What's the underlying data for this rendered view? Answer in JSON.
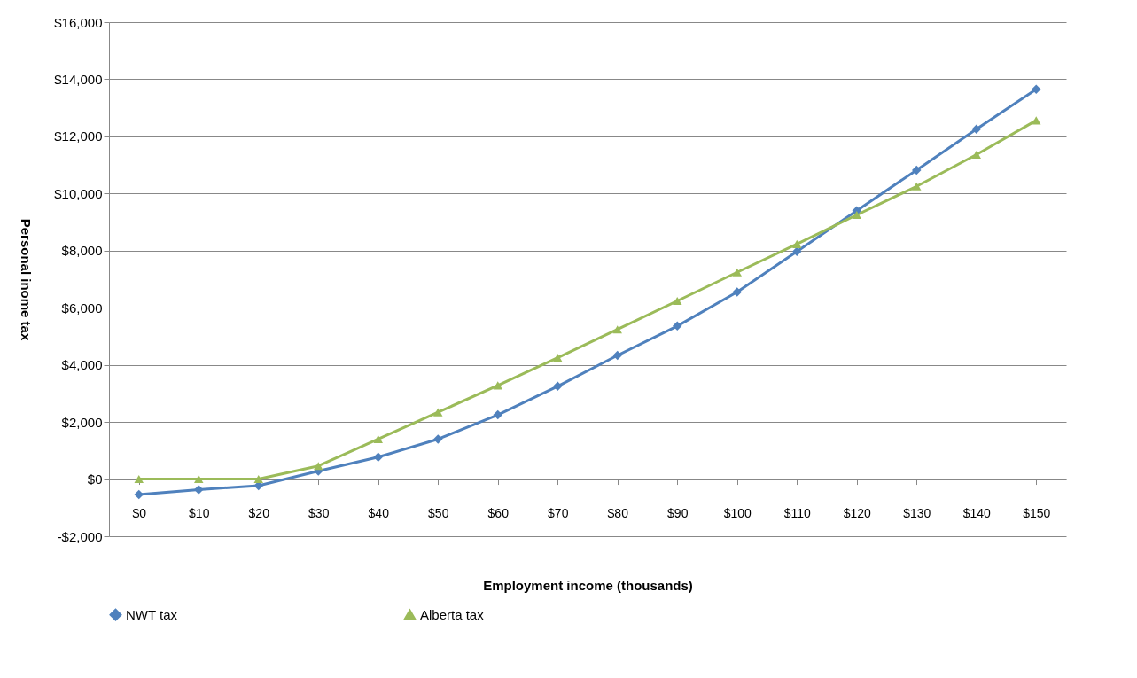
{
  "chart_data": {
    "type": "line",
    "xlabel": "Employment income (thousands)",
    "ylabel": "Personal inome tax",
    "categories": [
      "$0",
      "$10",
      "$20",
      "$30",
      "$40",
      "$50",
      "$60",
      "$70",
      "$80",
      "$90",
      "$100",
      "$110",
      "$120",
      "$130",
      "$140",
      "$150"
    ],
    "series": [
      {
        "name": "NWT tax",
        "color": "#4f81bd",
        "marker": "diamond",
        "values": [
          -540,
          -370,
          -230,
          280,
          770,
          1400,
          2250,
          3250,
          4330,
          5360,
          6550,
          7970,
          9400,
          10820,
          12250,
          13650
        ]
      },
      {
        "name": "Alberta tax",
        "color": "#9bbb59",
        "marker": "triangle",
        "values": [
          0,
          0,
          0,
          460,
          1400,
          2340,
          3280,
          4250,
          5240,
          6240,
          7240,
          8230,
          9250,
          10250,
          11360,
          12560
        ]
      }
    ],
    "ylim": [
      -2000,
      16000
    ],
    "yticks": [
      {
        "value": -2000,
        "label": "-$2,000"
      },
      {
        "value": 0,
        "label": "$0"
      },
      {
        "value": 2000,
        "label": "$2,000"
      },
      {
        "value": 4000,
        "label": "$4,000"
      },
      {
        "value": 6000,
        "label": "$6,000"
      },
      {
        "value": 8000,
        "label": "$8,000"
      },
      {
        "value": 10000,
        "label": "$10,000"
      },
      {
        "value": 12000,
        "label": "$12,000"
      },
      {
        "value": 14000,
        "label": "$14,000"
      },
      {
        "value": 16000,
        "label": "$16,000"
      }
    ],
    "grid": "y",
    "legend": "bottom"
  }
}
